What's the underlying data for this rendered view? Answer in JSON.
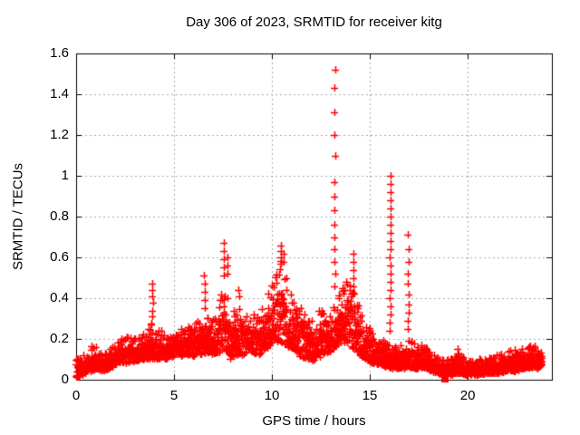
{
  "chart_data": {
    "type": "scatter",
    "title": "Day 306 of 2023, SRMTID for receiver kitg",
    "xlabel": "GPS time / hours",
    "ylabel": "SRMTID / TECUs",
    "xlim": [
      0,
      24.3
    ],
    "ylim": [
      0,
      1.6
    ],
    "xticks": {
      "values": [
        0,
        5,
        10,
        15,
        20
      ],
      "labels": [
        "0",
        "5",
        "10",
        "15",
        "20"
      ]
    },
    "yticks": {
      "values": [
        0,
        0.2,
        0.4,
        0.6,
        0.8,
        1.0,
        1.2,
        1.4,
        1.6
      ],
      "labels": [
        "0",
        "0.2",
        "0.4",
        "0.6",
        "0.8",
        "1",
        "1.2",
        "1.4",
        "1.6"
      ]
    },
    "grid": {
      "on": true,
      "style": "dotted",
      "color": "#a8a8a8"
    },
    "legend": "none",
    "colors": {
      "points": "#ff0000",
      "border": "#000000",
      "background": "#ffffff",
      "text": "#000000"
    },
    "series": [
      {
        "name": "SRMTID scatter",
        "marker": "plus",
        "color": "#ff0000",
        "x_start": 0.0,
        "x_end": 23.8,
        "band_envelope": [
          [
            0.0,
            0.0,
            0.1
          ],
          [
            0.3,
            0.02,
            0.12
          ],
          [
            0.7,
            0.04,
            0.16
          ],
          [
            1.0,
            0.05,
            0.17
          ],
          [
            1.4,
            0.04,
            0.12
          ],
          [
            1.8,
            0.06,
            0.16
          ],
          [
            2.2,
            0.08,
            0.2
          ],
          [
            2.6,
            0.08,
            0.21
          ],
          [
            3.0,
            0.09,
            0.22
          ],
          [
            3.5,
            0.1,
            0.24
          ],
          [
            3.9,
            0.1,
            0.3
          ],
          [
            4.3,
            0.1,
            0.24
          ],
          [
            4.8,
            0.1,
            0.22
          ],
          [
            5.2,
            0.11,
            0.24
          ],
          [
            5.6,
            0.12,
            0.26
          ],
          [
            6.0,
            0.11,
            0.27
          ],
          [
            6.4,
            0.12,
            0.3
          ],
          [
            6.6,
            0.13,
            0.35
          ],
          [
            6.9,
            0.12,
            0.3
          ],
          [
            7.2,
            0.13,
            0.34
          ],
          [
            7.5,
            0.14,
            0.45
          ],
          [
            7.7,
            0.14,
            0.48
          ],
          [
            7.9,
            0.1,
            0.3
          ],
          [
            8.2,
            0.12,
            0.38
          ],
          [
            8.5,
            0.12,
            0.35
          ],
          [
            8.8,
            0.14,
            0.33
          ],
          [
            9.1,
            0.13,
            0.33
          ],
          [
            9.4,
            0.12,
            0.32
          ],
          [
            9.7,
            0.15,
            0.4
          ],
          [
            10.0,
            0.18,
            0.48
          ],
          [
            10.3,
            0.18,
            0.55
          ],
          [
            10.55,
            0.18,
            0.6
          ],
          [
            10.8,
            0.16,
            0.5
          ],
          [
            11.1,
            0.15,
            0.42
          ],
          [
            11.4,
            0.12,
            0.36
          ],
          [
            11.7,
            0.1,
            0.32
          ],
          [
            12.0,
            0.09,
            0.3
          ],
          [
            12.4,
            0.11,
            0.34
          ],
          [
            12.7,
            0.13,
            0.38
          ],
          [
            13.0,
            0.14,
            0.36
          ],
          [
            13.3,
            0.16,
            0.4
          ],
          [
            13.6,
            0.18,
            0.45
          ],
          [
            13.9,
            0.18,
            0.5
          ],
          [
            14.15,
            0.15,
            0.45
          ],
          [
            14.5,
            0.12,
            0.35
          ],
          [
            14.8,
            0.1,
            0.28
          ],
          [
            15.1,
            0.08,
            0.24
          ],
          [
            15.5,
            0.07,
            0.2
          ],
          [
            15.9,
            0.06,
            0.18
          ],
          [
            16.2,
            0.05,
            0.16
          ],
          [
            16.6,
            0.05,
            0.17
          ],
          [
            17.0,
            0.06,
            0.2
          ],
          [
            17.4,
            0.05,
            0.17
          ],
          [
            17.7,
            0.06,
            0.2
          ],
          [
            18.0,
            0.04,
            0.14
          ],
          [
            18.5,
            0.03,
            0.11
          ],
          [
            19.0,
            0.02,
            0.1
          ],
          [
            19.5,
            0.03,
            0.13
          ],
          [
            20.0,
            0.02,
            0.1
          ],
          [
            20.5,
            0.02,
            0.1
          ],
          [
            21.0,
            0.03,
            0.11
          ],
          [
            21.5,
            0.03,
            0.12
          ],
          [
            22.0,
            0.04,
            0.14
          ],
          [
            22.4,
            0.04,
            0.15
          ],
          [
            22.8,
            0.05,
            0.16
          ],
          [
            23.2,
            0.06,
            0.18
          ],
          [
            23.6,
            0.05,
            0.16
          ],
          [
            23.8,
            0.06,
            0.18
          ]
        ],
        "spikes": [
          {
            "x": 3.9,
            "ys": [
              0.47,
              0.44,
              0.41,
              0.38,
              0.34,
              0.31
            ]
          },
          {
            "x": 6.57,
            "ys": [
              0.51,
              0.47,
              0.43,
              0.39,
              0.35
            ]
          },
          {
            "x": 7.55,
            "ys": [
              0.67,
              0.63,
              0.59,
              0.55,
              0.51
            ]
          },
          {
            "x": 7.72,
            "ys": [
              0.6,
              0.56,
              0.52
            ]
          },
          {
            "x": 8.3,
            "ys": [
              0.44,
              0.41
            ]
          },
          {
            "x": 10.45,
            "ys": [
              0.66,
              0.63,
              0.6,
              0.57
            ]
          },
          {
            "x": 10.6,
            "ys": [
              0.62,
              0.58
            ]
          },
          {
            "x": 13.2,
            "ys": [
              1.52,
              1.43,
              1.31,
              1.2,
              1.1,
              0.97,
              0.9,
              0.83,
              0.76,
              0.7,
              0.64,
              0.58,
              0.52,
              0.46
            ]
          },
          {
            "x": 14.15,
            "ys": [
              0.62,
              0.58,
              0.54,
              0.5,
              0.46
            ]
          },
          {
            "x": 16.05,
            "ys": [
              1.0,
              0.96,
              0.92,
              0.88,
              0.84,
              0.8,
              0.76,
              0.72,
              0.68,
              0.64,
              0.6,
              0.56,
              0.52,
              0.48,
              0.44,
              0.4,
              0.36,
              0.32,
              0.28,
              0.24
            ]
          },
          {
            "x": 16.95,
            "ys": [
              0.71,
              0.64,
              0.58,
              0.52,
              0.47,
              0.42,
              0.37,
              0.33,
              0.29,
              0.25
            ]
          },
          {
            "x": 19.5,
            "ys": [
              0.15,
              0.13
            ]
          }
        ]
      },
      {
        "name": "flagged epoch",
        "marker": "filled-square",
        "color": "#ff0000",
        "points": [
          [
            18.85,
            0.005
          ]
        ]
      }
    ]
  }
}
